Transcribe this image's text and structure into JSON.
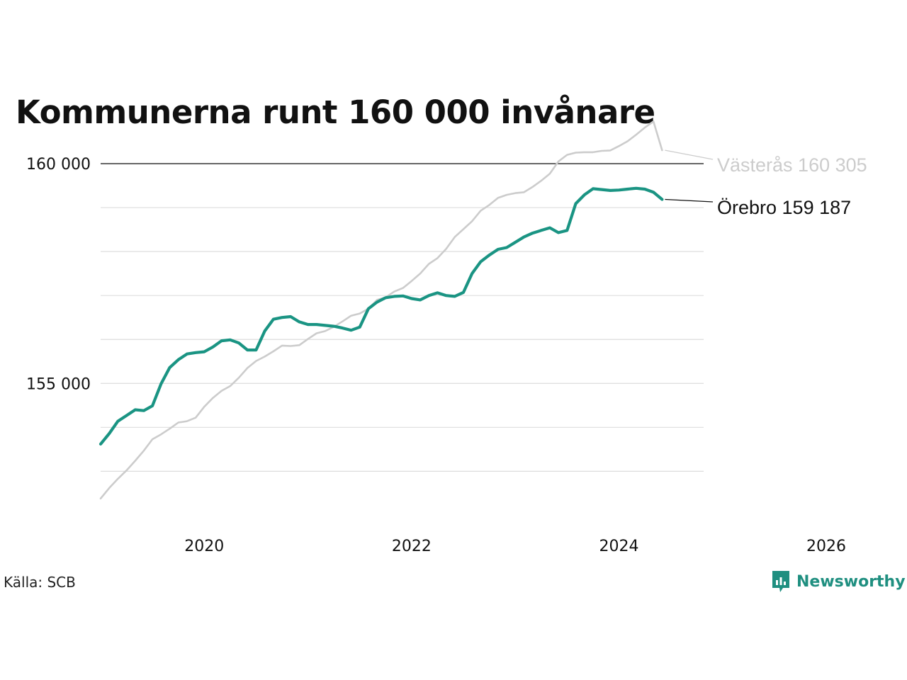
{
  "title": "Kommunerna runt 160 000 invånare",
  "source": "Källa: SCB",
  "brand": "Newsworthy",
  "colors": {
    "orebro": "#1a9483",
    "vasteras": "#cccccc",
    "reference_line": "#222222",
    "grid": "#dddddd"
  },
  "chart_data": {
    "type": "line",
    "title": "Kommunerna runt 160 000 invånare",
    "xlabel": "",
    "ylabel": "",
    "x_ticks": [
      "2020",
      "2022",
      "2024",
      "2026"
    ],
    "x_range": [
      "2019-01",
      "2026-06"
    ],
    "y_ticks": [
      "160 000",
      "155 000"
    ],
    "y_tick_values": [
      160000,
      155000
    ],
    "y_range": [
      152200,
      160500
    ],
    "grid": true,
    "reference_line": 160000,
    "x": [
      "2019-01",
      "2019-02",
      "2019-03",
      "2019-04",
      "2019-05",
      "2019-06",
      "2019-07",
      "2019-08",
      "2019-09",
      "2019-10",
      "2019-11",
      "2019-12",
      "2020-01",
      "2020-02",
      "2020-03",
      "2020-04",
      "2020-05",
      "2020-06",
      "2020-07",
      "2020-08",
      "2020-09",
      "2020-10",
      "2020-11",
      "2020-12",
      "2021-01",
      "2021-02",
      "2021-03",
      "2021-04",
      "2021-05",
      "2021-06",
      "2021-07",
      "2021-08",
      "2021-09",
      "2021-10",
      "2021-11",
      "2021-12",
      "2022-01",
      "2022-02",
      "2022-03",
      "2022-04",
      "2022-05",
      "2022-06",
      "2022-07",
      "2022-08",
      "2022-09",
      "2022-10",
      "2022-11",
      "2022-12",
      "2023-01",
      "2023-02",
      "2023-03",
      "2023-04",
      "2023-05",
      "2023-06",
      "2023-07",
      "2023-08",
      "2023-09",
      "2023-10",
      "2023-11",
      "2023-12",
      "2024-01",
      "2024-02",
      "2024-03",
      "2024-04",
      "2024-05",
      "2024-06"
    ],
    "series": [
      {
        "name": "Västerås",
        "end_label": "Västerås 160 305",
        "values": [
          152380,
          152620,
          152830,
          153020,
          153240,
          153470,
          153730,
          153840,
          153970,
          154110,
          154140,
          154220,
          154470,
          154670,
          154830,
          154940,
          155130,
          155350,
          155510,
          155610,
          155730,
          155860,
          155850,
          155870,
          156010,
          156140,
          156190,
          156290,
          156410,
          156540,
          156590,
          156700,
          156900,
          156960,
          157090,
          157170,
          157330,
          157500,
          157720,
          157850,
          158060,
          158330,
          158510,
          158690,
          158930,
          159060,
          159220,
          159290,
          159330,
          159350,
          159470,
          159610,
          159770,
          160050,
          160200,
          160250,
          160260,
          160260,
          160290,
          160300,
          160400,
          160510,
          160660,
          160820,
          160960,
          160305
        ]
      },
      {
        "name": "Örebro",
        "end_label": "Örebro 159 187",
        "values": [
          153620,
          153860,
          154140,
          154270,
          154400,
          154380,
          154490,
          154990,
          155360,
          155540,
          155670,
          155700,
          155720,
          155830,
          155970,
          155990,
          155920,
          155760,
          155760,
          156190,
          156460,
          156500,
          156520,
          156400,
          156340,
          156340,
          156320,
          156300,
          156260,
          156210,
          156280,
          156700,
          156850,
          156950,
          156980,
          156990,
          156930,
          156900,
          157000,
          157060,
          157000,
          156980,
          157070,
          157500,
          157770,
          157920,
          158050,
          158090,
          158210,
          158330,
          158420,
          158480,
          158540,
          158430,
          158480,
          159090,
          159290,
          159430,
          159410,
          159390,
          159400,
          159420,
          159440,
          159420,
          159350,
          159187
        ]
      }
    ]
  }
}
